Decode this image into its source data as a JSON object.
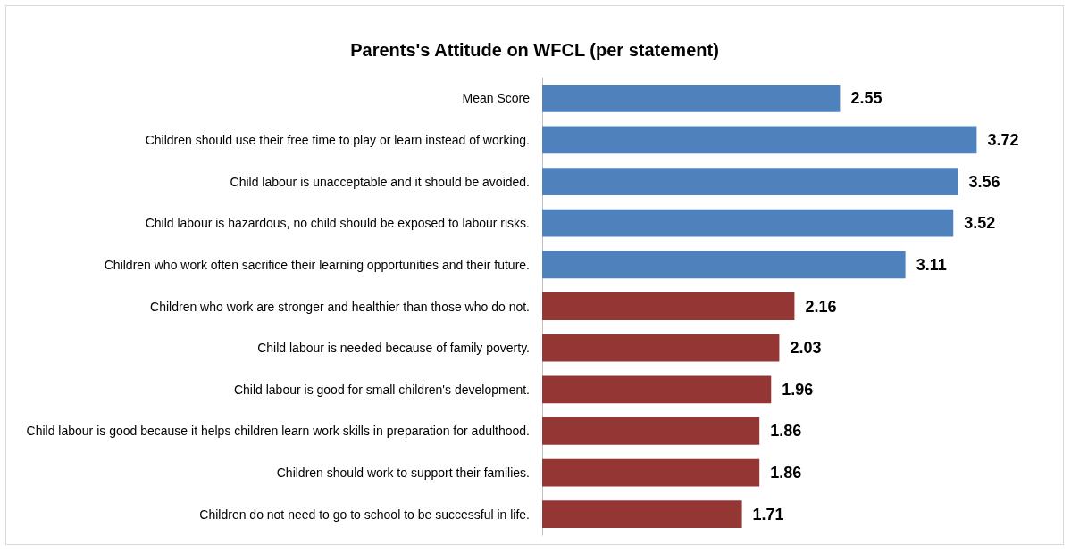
{
  "chart_data": {
    "type": "bar",
    "orientation": "horizontal",
    "title": "Parents's Attitude on WFCL (per statement)",
    "categories": [
      "Mean Score",
      "Children should use their free time to play or learn instead of working.",
      "Child labour is unacceptable and it should be avoided.",
      "Child labour is hazardous, no child should be exposed to labour risks.",
      "Children who work often sacrifice their learning opportunities and their future.",
      "Children who work are stronger and healthier than those who do not.",
      "Child labour is needed because of family poverty.",
      "Child labour is good for small children's development.",
      "Child labour is good because it helps children learn work skills in preparation for adulthood.",
      "Children should work to support their families.",
      "Children do not need to go to school to be successful in life."
    ],
    "values": [
      2.55,
      3.72,
      3.56,
      3.52,
      3.11,
      2.16,
      2.03,
      1.96,
      1.86,
      1.86,
      1.71
    ],
    "colors": [
      "#4f81bd",
      "#4f81bd",
      "#4f81bd",
      "#4f81bd",
      "#4f81bd",
      "#943634",
      "#943634",
      "#943634",
      "#943634",
      "#943634",
      "#943634"
    ],
    "data_labels": true
  }
}
